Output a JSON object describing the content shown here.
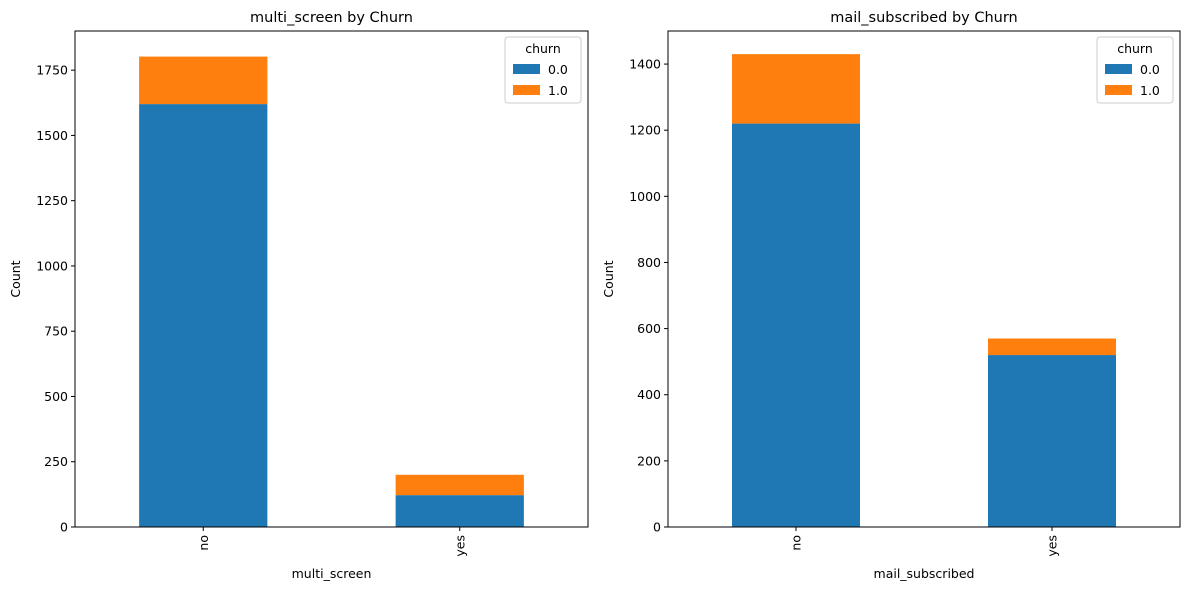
{
  "chart_data": [
    {
      "type": "bar",
      "stacked": true,
      "title": "multi_screen by Churn",
      "xlabel": "multi_screen",
      "ylabel": "Count",
      "categories": [
        "no",
        "yes"
      ],
      "ylim": [
        0,
        1900
      ],
      "yticks": [
        0,
        250,
        500,
        750,
        1000,
        1250,
        1500,
        1750
      ],
      "legend": {
        "title": "churn",
        "position": "top-right"
      },
      "series": [
        {
          "name": "0.0",
          "color": "#1f77b4",
          "values": [
            1620,
            122
          ]
        },
        {
          "name": "1.0",
          "color": "#ff7f0e",
          "values": [
            182,
            78
          ]
        }
      ],
      "grid": false
    },
    {
      "type": "bar",
      "stacked": true,
      "title": "mail_subscribed by Churn",
      "xlabel": "mail_subscribed",
      "ylabel": "Count",
      "categories": [
        "no",
        "yes"
      ],
      "ylim": [
        0,
        1500
      ],
      "yticks": [
        0,
        200,
        400,
        600,
        800,
        1000,
        1200,
        1400
      ],
      "legend": {
        "title": "churn",
        "position": "top-right"
      },
      "series": [
        {
          "name": "0.0",
          "color": "#1f77b4",
          "values": [
            1220,
            520
          ]
        },
        {
          "name": "1.0",
          "color": "#ff7f0e",
          "values": [
            210,
            50
          ]
        }
      ],
      "grid": false
    }
  ]
}
